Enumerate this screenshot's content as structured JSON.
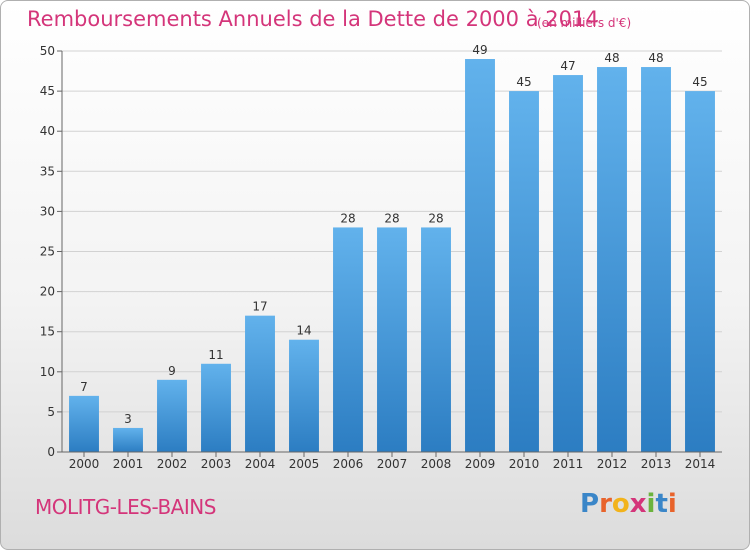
{
  "header": {
    "title": "Remboursements Annuels de la Dette de 2000 à 2014",
    "subtitle": "(en milliers d'€)"
  },
  "footer": {
    "commune": "MOLITG-LES-BAINS",
    "logo": "Proxiti"
  },
  "colors": {
    "title": "#d4357a",
    "bar_top": "#62b2ec",
    "bar_bottom": "#2c7dc2",
    "grid": "#d2d2d2"
  },
  "chart_data": {
    "type": "bar",
    "title": "Remboursements Annuels de la Dette de 2000 à 2014",
    "subtitle": "(en milliers d'€)",
    "categories": [
      "2000",
      "2001",
      "2002",
      "2003",
      "2004",
      "2005",
      "2006",
      "2007",
      "2008",
      "2009",
      "2010",
      "2011",
      "2012",
      "2013",
      "2014"
    ],
    "values": [
      7,
      3,
      9,
      11,
      17,
      14,
      28,
      28,
      28,
      49,
      45,
      47,
      48,
      48,
      45
    ],
    "ylim": [
      0,
      50
    ],
    "yticks": [
      0,
      5,
      10,
      15,
      20,
      25,
      30,
      35,
      40,
      45,
      50
    ],
    "grid": true,
    "xlabel": "",
    "ylabel": ""
  }
}
